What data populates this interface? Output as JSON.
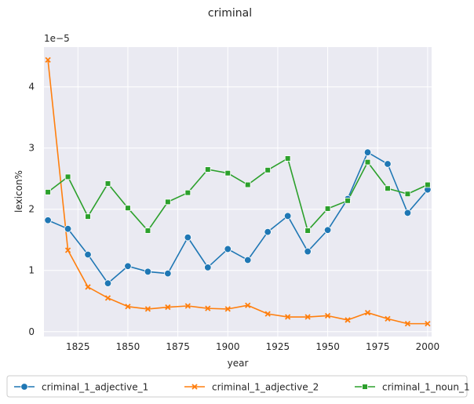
{
  "chart_data": {
    "type": "line",
    "title": "criminal",
    "xlabel": "year",
    "ylabel": "lexicon%",
    "y_offset_label": "1e−5",
    "xlim": [
      1808,
      2002
    ],
    "ylim": [
      -0.08,
      4.65
    ],
    "x_ticks": [
      1825,
      1850,
      1875,
      1900,
      1925,
      1950,
      1975,
      2000
    ],
    "x_tick_labels": [
      "1825",
      "1850",
      "1875",
      "1900",
      "1925",
      "1950",
      "1975",
      "2000"
    ],
    "y_ticks": [
      0,
      1,
      2,
      3,
      4
    ],
    "y_tick_labels": [
      "0",
      "1",
      "2",
      "3",
      "4"
    ],
    "grid": true,
    "legend_position": "bottom",
    "x": [
      1810,
      1820,
      1830,
      1840,
      1850,
      1860,
      1870,
      1880,
      1890,
      1900,
      1910,
      1920,
      1930,
      1940,
      1950,
      1960,
      1970,
      1980,
      1990,
      2000
    ],
    "series": [
      {
        "name": "criminal_1_adjective_1",
        "color": "#1f77b4",
        "marker": "circle",
        "values": [
          1.82,
          1.68,
          1.26,
          0.79,
          1.07,
          0.98,
          0.95,
          1.54,
          1.05,
          1.35,
          1.17,
          1.63,
          1.89,
          1.31,
          1.66,
          2.17,
          2.93,
          2.74,
          1.94,
          2.32
        ]
      },
      {
        "name": "criminal_1_adjective_2",
        "color": "#ff7f0e",
        "marker": "x",
        "values": [
          4.44,
          1.33,
          0.73,
          0.55,
          0.41,
          0.37,
          0.4,
          0.42,
          0.38,
          0.37,
          0.43,
          0.29,
          0.24,
          0.24,
          0.26,
          0.19,
          0.31,
          0.21,
          0.13,
          0.13
        ]
      },
      {
        "name": "criminal_1_noun_1",
        "color": "#2ca02c",
        "marker": "square",
        "values": [
          2.28,
          2.53,
          1.88,
          2.42,
          2.02,
          1.65,
          2.12,
          2.27,
          2.65,
          2.59,
          2.4,
          2.64,
          2.83,
          1.65,
          2.01,
          2.14,
          2.77,
          2.34,
          2.25,
          2.4
        ]
      }
    ]
  }
}
